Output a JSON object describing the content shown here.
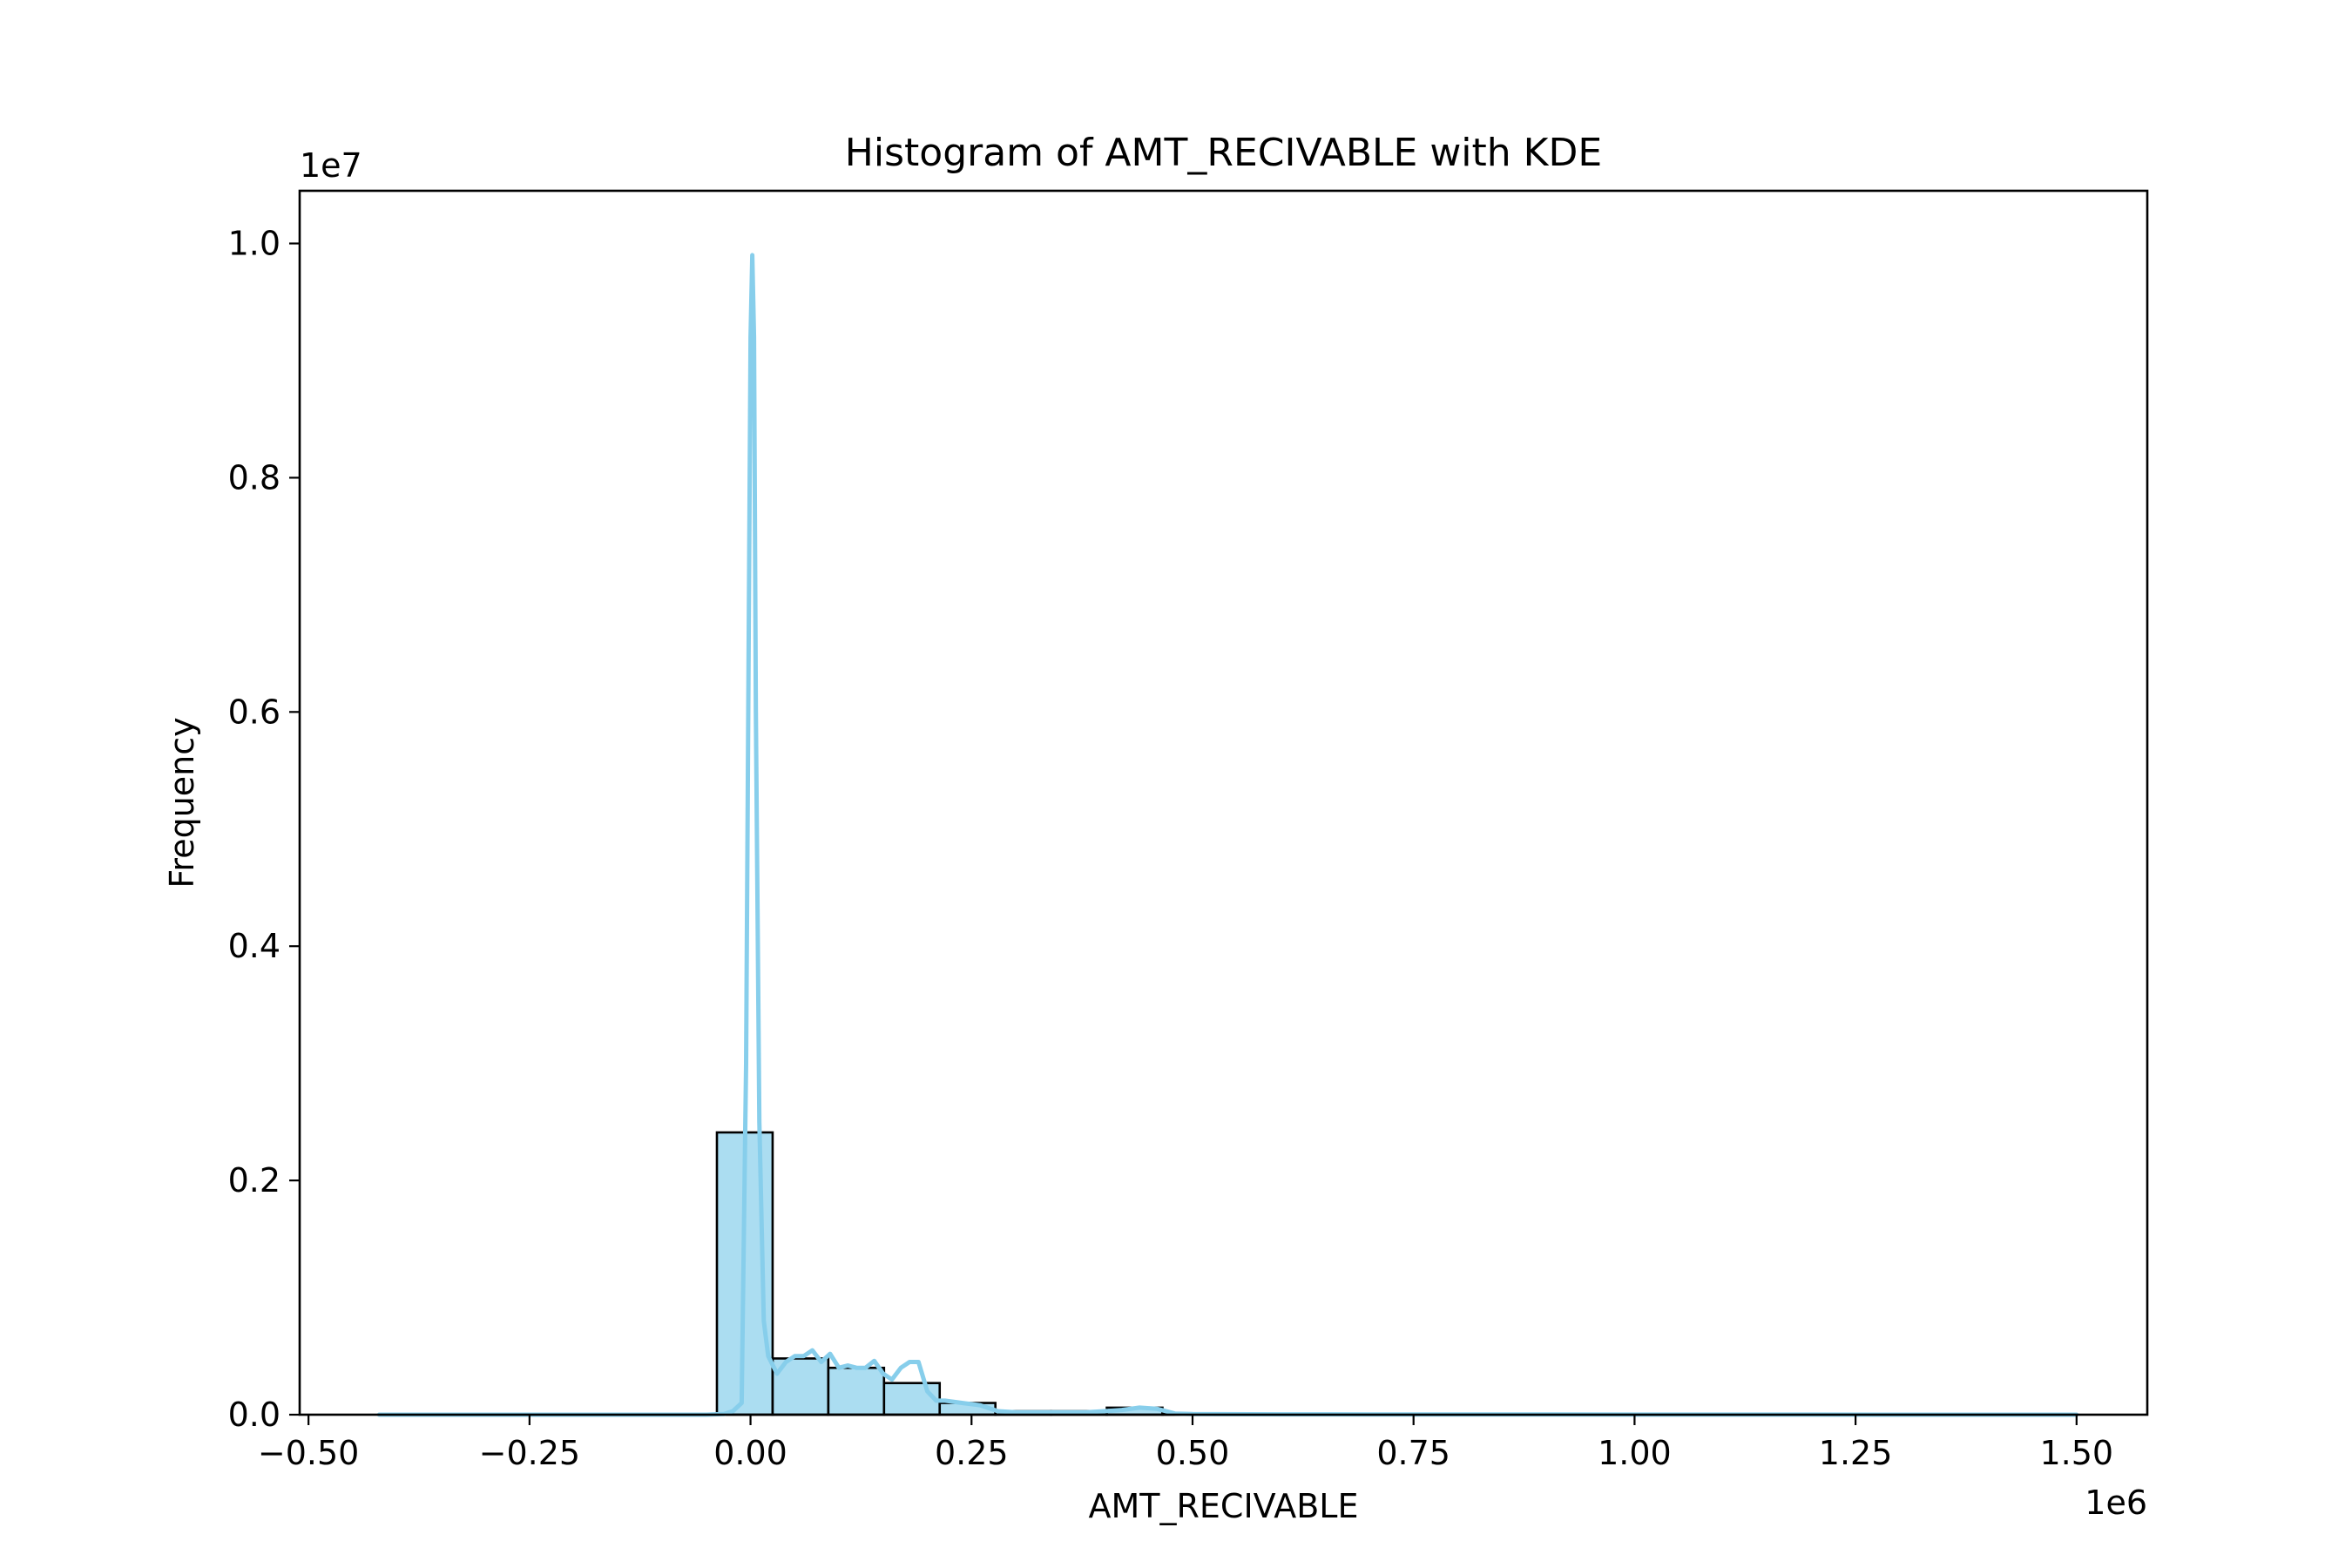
{
  "chart_data": {
    "type": "bar",
    "title": "Histogram of AMT_RECIVABLE with KDE",
    "xlabel": "AMT_RECIVABLE",
    "ylabel": "Frequency",
    "x_offset_label": "1e6",
    "y_offset_label": "1e7",
    "xlim": [
      -0.51,
      1.58
    ],
    "ylim": [
      0,
      1.045
    ],
    "x_scale_exponent": 6,
    "y_scale_exponent": 7,
    "x_ticks": [
      -0.5,
      -0.25,
      0.0,
      0.25,
      0.5,
      0.75,
      1.0,
      1.25,
      1.5
    ],
    "x_tick_labels": [
      "−0.50",
      "−0.25",
      "0.00",
      "0.25",
      "0.50",
      "0.75",
      "1.00",
      "1.25",
      "1.50"
    ],
    "y_ticks": [
      0.0,
      0.2,
      0.4,
      0.6,
      0.8,
      1.0
    ],
    "y_tick_labels": [
      "0.0",
      "0.2",
      "0.4",
      "0.6",
      "0.8",
      "1.0"
    ],
    "grid": false,
    "bar_color": "#87ceeb",
    "kde_color": "#87ceeb",
    "edge_color": "#000000",
    "bins": [
      {
        "x0": -0.038,
        "x1": 0.025,
        "count": 0.241
      },
      {
        "x0": 0.025,
        "x1": 0.088,
        "count": 0.048
      },
      {
        "x0": 0.088,
        "x1": 0.151,
        "count": 0.04
      },
      {
        "x0": 0.151,
        "x1": 0.214,
        "count": 0.027
      },
      {
        "x0": 0.214,
        "x1": 0.277,
        "count": 0.01
      },
      {
        "x0": 0.277,
        "x1": 0.34,
        "count": 0.003
      },
      {
        "x0": 0.34,
        "x1": 0.403,
        "count": 0.003
      },
      {
        "x0": 0.403,
        "x1": 0.466,
        "count": 0.006
      },
      {
        "x0": 0.466,
        "x1": 0.529,
        "count": 0.001
      },
      {
        "x0": 0.529,
        "x1": 0.592,
        "count": 0.0005
      }
    ],
    "kde": {
      "x": [
        -0.42,
        -0.3,
        -0.2,
        -0.1,
        -0.05,
        -0.03,
        -0.02,
        -0.01,
        -0.005,
        0.0,
        0.002,
        0.004,
        0.006,
        0.01,
        0.015,
        0.02,
        0.03,
        0.04,
        0.05,
        0.06,
        0.07,
        0.08,
        0.09,
        0.1,
        0.11,
        0.12,
        0.13,
        0.14,
        0.15,
        0.16,
        0.17,
        0.18,
        0.19,
        0.2,
        0.21,
        0.22,
        0.24,
        0.26,
        0.28,
        0.3,
        0.34,
        0.38,
        0.4,
        0.42,
        0.44,
        0.46,
        0.48,
        0.5,
        0.6,
        0.7,
        0.8,
        1.0,
        1.2,
        1.4,
        1.5
      ],
      "y": [
        0.0,
        0.0,
        0.0,
        0.0,
        0.0,
        0.0005,
        0.003,
        0.01,
        0.3,
        0.92,
        0.99,
        0.92,
        0.6,
        0.25,
        0.08,
        0.05,
        0.035,
        0.045,
        0.05,
        0.05,
        0.055,
        0.045,
        0.052,
        0.04,
        0.042,
        0.04,
        0.04,
        0.046,
        0.035,
        0.03,
        0.04,
        0.045,
        0.045,
        0.02,
        0.012,
        0.012,
        0.01,
        0.008,
        0.003,
        0.002,
        0.002,
        0.002,
        0.003,
        0.004,
        0.006,
        0.005,
        0.001,
        0.0005,
        0.0003,
        0.0002,
        0.0002,
        0.0001,
        0.0001,
        0.0,
        0.0
      ]
    }
  }
}
